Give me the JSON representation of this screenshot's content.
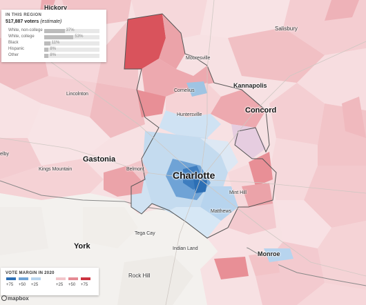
{
  "map": {
    "places": {
      "hickory": "Hickory",
      "salisbury": "Salisbury",
      "mooresville": "Mooresville",
      "kannapolis": "Kannapolis",
      "cornelius": "Cornelius",
      "lincolnton": "Lincolnton",
      "concord": "Concord",
      "huntersville": "Huntersville",
      "shelby": "elby",
      "gastonia": "Gastonia",
      "kings_mountain": "Kings Mountain",
      "belmont": "Belmont",
      "charlotte": "Charlotte",
      "mint_hill": "Mint Hill",
      "matthews": "Matthews",
      "tega_cay": "Tega Cay",
      "york": "York",
      "indian_land": "Indian Land",
      "monroe": "Monroe",
      "rock_hill": "Rock Hill"
    },
    "colors": {
      "background": "#f3f1ee",
      "strong_red": "#d9535c",
      "mid_red": "#eba3a9",
      "light_red": "#f6d3d6",
      "pale_red": "#f9e4e6",
      "light_blue": "#d6e7f5",
      "mid_blue": "#9fc4e3",
      "strong_blue": "#3d7dbf",
      "state_line": "#777777",
      "region_outline": "#666666"
    }
  },
  "info_panel": {
    "heading": "IN THIS REGION",
    "voters_count": "517,887 voters",
    "voters_note": "(estimate)",
    "rows": [
      {
        "label": "White, non-college",
        "percent": "37%",
        "value": 37
      },
      {
        "label": "White, college",
        "percent": "53%",
        "value": 53
      },
      {
        "label": "Black",
        "percent": "11%",
        "value": 11
      },
      {
        "label": "Hispanic",
        "percent": "8%",
        "value": 8
      },
      {
        "label": "Other",
        "percent": "8%",
        "value": 8
      }
    ]
  },
  "legend": {
    "title": "VOTE MARGIN IN 2020",
    "ticks": [
      "+75",
      "+50",
      "+25",
      "+25",
      "+50",
      "+75"
    ],
    "swatches": [
      "#2c6fb5",
      "#6fa3d6",
      "#b7d4ee",
      "#f2c6ca",
      "#e58a93",
      "#cc3441"
    ]
  },
  "attribution": {
    "brand": "mapbox",
    "icon": "mapbox-logo-icon"
  }
}
